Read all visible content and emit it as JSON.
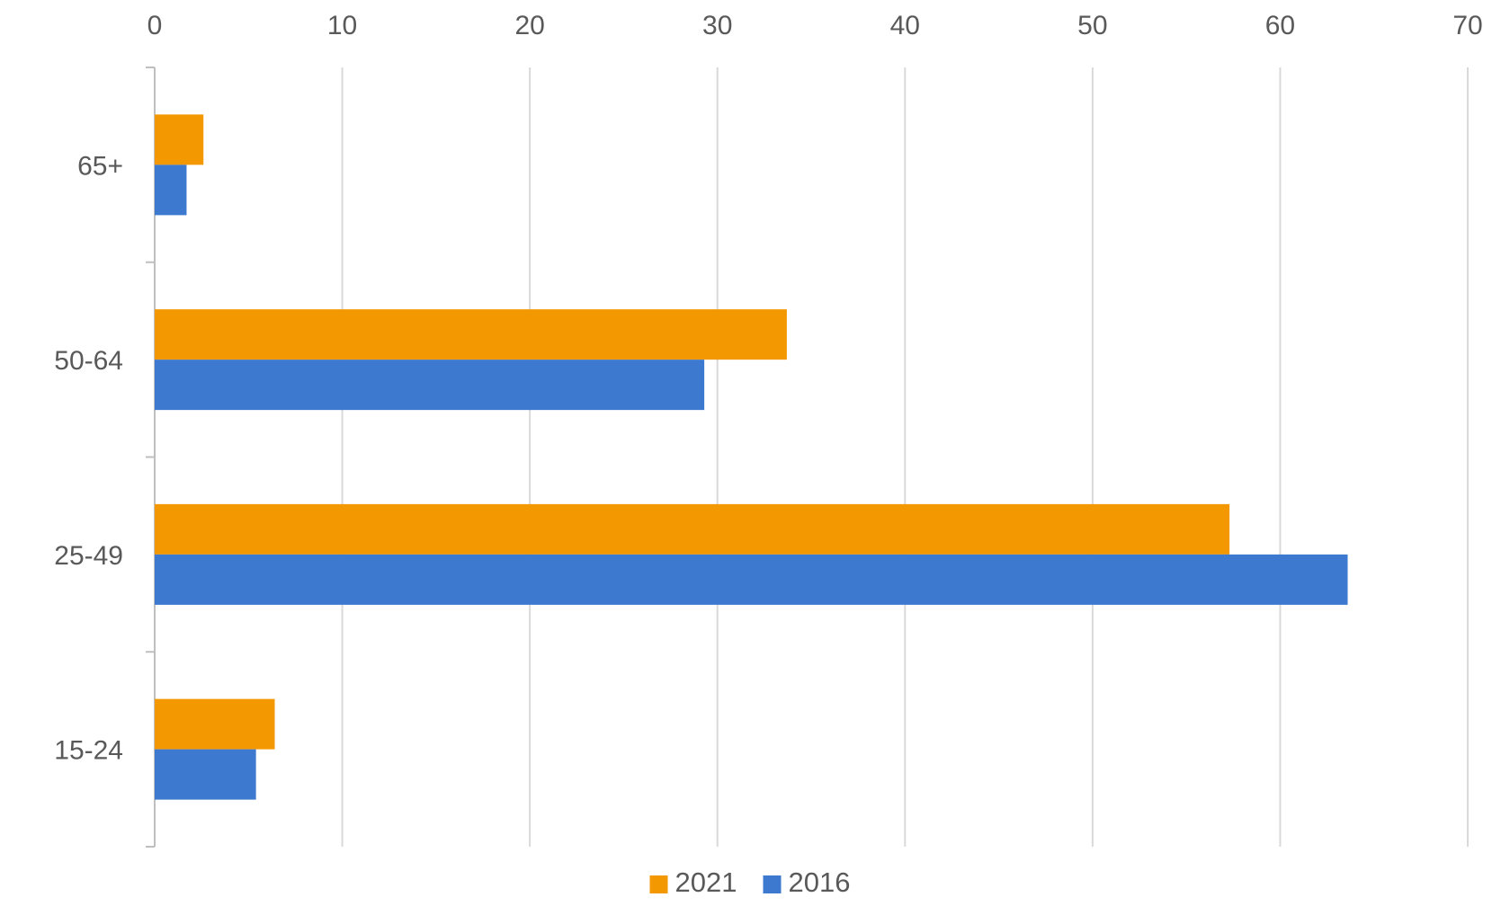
{
  "chart_data": {
    "type": "bar",
    "orientation": "horizontal",
    "title": "",
    "xlabel": "",
    "ylabel": "",
    "categories": [
      "15-24",
      "25-49",
      "50-64",
      "65+"
    ],
    "series": [
      {
        "name": "2021",
        "color": "#f39800",
        "values": [
          6.4,
          57.3,
          33.7,
          2.6
        ]
      },
      {
        "name": "2016",
        "color": "#3d7acf",
        "values": [
          5.4,
          63.6,
          29.3,
          1.7
        ]
      }
    ],
    "xlim": [
      0,
      70
    ],
    "xticks": [
      "0",
      "10",
      "20",
      "30",
      "40",
      "50",
      "60",
      "70"
    ],
    "x_axis_position": "top",
    "grid": true,
    "legend_position": "bottom-center"
  }
}
